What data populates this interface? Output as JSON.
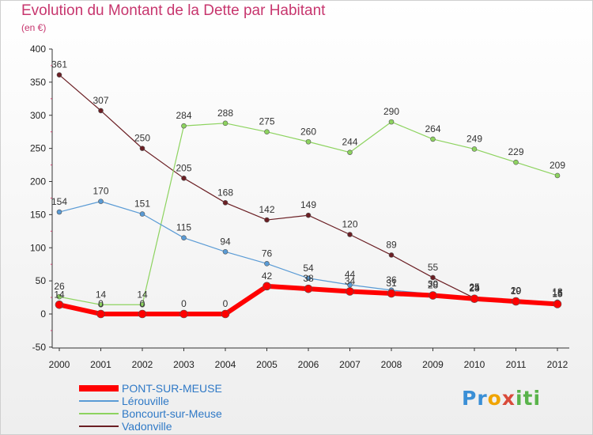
{
  "header": {
    "title": "Evolution du Montant de la Dette par Habitant",
    "unit": "(en €)"
  },
  "logo": {
    "text": "Proxiti"
  },
  "chart_data": {
    "type": "line",
    "title": "Evolution du Montant de la Dette par Habitant",
    "subtitle": "(en €)",
    "xlabel": "",
    "ylabel": "",
    "x": [
      "2000",
      "2001",
      "2002",
      "2003",
      "2004",
      "2005",
      "2006",
      "2007",
      "2008",
      "2009",
      "2010",
      "2011",
      "2012"
    ],
    "yticks": [
      -50,
      0,
      50,
      100,
      150,
      200,
      250,
      300,
      350,
      400
    ],
    "ylim": [
      -50,
      400
    ],
    "grid": false,
    "legend_position": "bottom-left",
    "series": [
      {
        "name": "Vadonville",
        "color": "#6b1f24",
        "values": [
          361,
          307,
          250,
          205,
          168,
          142,
          149,
          120,
          89,
          55,
          24,
          20,
          16
        ]
      },
      {
        "name": "Boncourt-sur-Meuse",
        "color": "#8dd35f",
        "values": [
          26,
          14,
          14,
          284,
          288,
          275,
          260,
          244,
          290,
          264,
          249,
          229,
          209
        ]
      },
      {
        "name": "Lérouville",
        "color": "#5a9bd5",
        "values": [
          154,
          170,
          151,
          115,
          94,
          76,
          54,
          44,
          36,
          30,
          25,
          20,
          18
        ]
      },
      {
        "name": "PONT-SUR-MEUSE",
        "color": "#ff0000",
        "values": [
          14,
          0,
          0,
          0,
          0,
          42,
          38,
          34,
          31,
          28,
          23,
          19,
          15
        ]
      }
    ],
    "legend_order": [
      "PONT-SUR-MEUSE",
      "Lérouville",
      "Boncourt-sur-Meuse",
      "Vadonville"
    ]
  }
}
